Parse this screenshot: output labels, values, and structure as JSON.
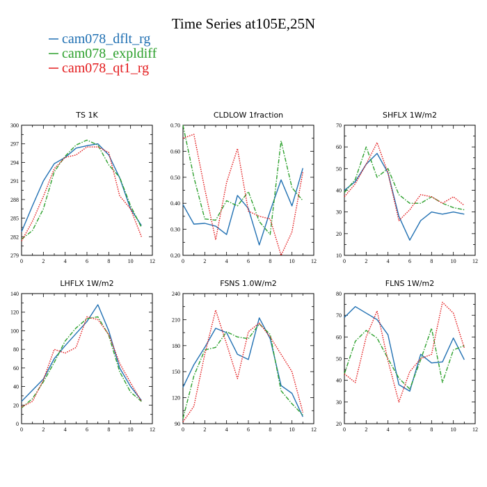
{
  "figure": {
    "title": "Time Series at105E,25N"
  },
  "legend": [
    {
      "label": "cam078_dflt_rg",
      "color": "#1f6fb2",
      "dash": "solid"
    },
    {
      "label": "cam078_expldiff",
      "color": "#2ca02c",
      "dash": "dashdot"
    },
    {
      "label": "cam078_qt1_rg",
      "color": "#e31a1c",
      "dash": "dot"
    }
  ],
  "chart_data": [
    {
      "type": "line",
      "title": "TS   1K",
      "x": [
        0,
        1,
        2,
        3,
        4,
        5,
        6,
        7,
        8,
        9,
        10,
        11
      ],
      "xlim": [
        0,
        12
      ],
      "xticks": [
        0,
        2,
        4,
        6,
        8,
        10,
        12
      ],
      "ylim": [
        279,
        300
      ],
      "yticks": [
        279,
        282,
        285,
        288,
        291,
        294,
        297,
        300
      ],
      "ytick_labels": [
        "279",
        "282",
        "285",
        "288",
        "291",
        "294",
        "297",
        "300"
      ],
      "series": [
        {
          "name": "cam078_dflt_rg",
          "values": [
            282.8,
            287.0,
            291.0,
            293.8,
            294.8,
            296.3,
            296.7,
            297.0,
            295.2,
            291.5,
            286.5,
            283.8
          ]
        },
        {
          "name": "cam078_expldiff",
          "values": [
            281.6,
            283.0,
            286.5,
            292.5,
            295.0,
            296.8,
            297.6,
            296.8,
            293.6,
            291.6,
            287.0,
            283.5
          ]
        },
        {
          "name": "cam078_qt1_rg",
          "values": [
            281.3,
            284.5,
            288.5,
            293.0,
            294.8,
            295.2,
            296.5,
            296.5,
            295.6,
            288.6,
            286.5,
            282.0
          ]
        }
      ]
    },
    {
      "type": "line",
      "title": "CLDLOW   1fraction",
      "x": [
        0,
        1,
        2,
        3,
        4,
        5,
        6,
        7,
        8,
        9,
        10,
        11
      ],
      "xlim": [
        0,
        12
      ],
      "xticks": [
        0,
        2,
        4,
        6,
        8,
        10,
        12
      ],
      "ylim": [
        0.2,
        0.7
      ],
      "yticks": [
        0.2,
        0.3,
        0.4,
        0.5,
        0.6,
        0.7
      ],
      "ytick_labels": [
        "0.20",
        "0.30",
        "0.40",
        "0.50",
        "0.60",
        "0.70"
      ],
      "series": [
        {
          "name": "cam078_dflt_rg",
          "values": [
            0.395,
            0.32,
            0.323,
            0.312,
            0.28,
            0.43,
            0.38,
            0.24,
            0.37,
            0.49,
            0.39,
            0.535
          ]
        },
        {
          "name": "cam078_expldiff",
          "values": [
            0.7,
            0.5,
            0.34,
            0.335,
            0.41,
            0.39,
            0.445,
            0.33,
            0.28,
            0.64,
            0.46,
            0.41
          ]
        },
        {
          "name": "cam078_qt1_rg",
          "values": [
            0.65,
            0.665,
            0.455,
            0.26,
            0.48,
            0.61,
            0.37,
            0.35,
            0.34,
            0.2,
            0.29,
            0.52
          ]
        }
      ]
    },
    {
      "type": "line",
      "title": "SHFLX   1W/m2",
      "x": [
        0,
        1,
        2,
        3,
        4,
        5,
        6,
        7,
        8,
        9,
        10,
        11
      ],
      "xlim": [
        0,
        12
      ],
      "xticks": [
        0,
        2,
        4,
        6,
        8,
        10,
        12
      ],
      "ylim": [
        10,
        70
      ],
      "yticks": [
        10,
        20,
        30,
        40,
        50,
        60,
        70
      ],
      "ytick_labels": [
        "10",
        "20",
        "30",
        "40",
        "50",
        "60",
        "70"
      ],
      "series": [
        {
          "name": "cam078_dflt_rg",
          "values": [
            40,
            44,
            52,
            57,
            48,
            28,
            17,
            26,
            30,
            29,
            30,
            29
          ]
        },
        {
          "name": "cam078_expldiff",
          "values": [
            39,
            45,
            60,
            46,
            50,
            38,
            34,
            34,
            37,
            34,
            32,
            31
          ]
        },
        {
          "name": "cam078_qt1_rg",
          "values": [
            37,
            43,
            52,
            62,
            48,
            26,
            31,
            38,
            37,
            34,
            37,
            33
          ]
        }
      ]
    },
    {
      "type": "line",
      "title": "LHFLX   1W/m2",
      "x": [
        0,
        1,
        2,
        3,
        4,
        5,
        6,
        7,
        8,
        9,
        10,
        11
      ],
      "xlim": [
        0,
        12
      ],
      "xticks": [
        0,
        2,
        4,
        6,
        8,
        10,
        12
      ],
      "ylim": [
        0,
        140
      ],
      "yticks": [
        0,
        20,
        40,
        60,
        80,
        100,
        120,
        140
      ],
      "ytick_labels": [
        "0",
        "20",
        "40",
        "60",
        "80",
        "100",
        "120",
        "140"
      ],
      "series": [
        {
          "name": "cam078_dflt_rg",
          "values": [
            24,
            36,
            48,
            70,
            84,
            97,
            110,
            128,
            100,
            60,
            40,
            25
          ]
        },
        {
          "name": "cam078_expldiff",
          "values": [
            17,
            27,
            45,
            66,
            89,
            103,
            113,
            115,
            95,
            56,
            34,
            24
          ]
        },
        {
          "name": "cam078_qt1_rg",
          "values": [
            18,
            24,
            47,
            80,
            76,
            82,
            115,
            112,
            96,
            65,
            44,
            24
          ]
        }
      ]
    },
    {
      "type": "line",
      "title": "FSNS   1.0W/m2",
      "x": [
        0,
        1,
        2,
        3,
        4,
        5,
        6,
        7,
        8,
        9,
        10,
        11
      ],
      "xlim": [
        0,
        12
      ],
      "xticks": [
        0,
        2,
        4,
        6,
        8,
        10,
        12
      ],
      "ylim": [
        90,
        240
      ],
      "yticks": [
        90,
        120,
        150,
        180,
        210,
        240
      ],
      "ytick_labels": [
        "90",
        "120",
        "150",
        "180",
        "210",
        "240"
      ],
      "series": [
        {
          "name": "cam078_dflt_rg",
          "values": [
            132,
            158,
            178,
            200,
            195,
            170,
            164,
            212,
            188,
            134,
            125,
            98
          ]
        },
        {
          "name": "cam078_expldiff",
          "values": [
            96,
            145,
            175,
            178,
            196,
            190,
            188,
            205,
            193,
            128,
            113,
            100
          ]
        },
        {
          "name": "cam078_qt1_rg",
          "values": [
            92,
            110,
            170,
            221,
            182,
            142,
            196,
            206,
            190,
            170,
            150,
            103
          ]
        }
      ]
    },
    {
      "type": "line",
      "title": "FLNS   1W/m2",
      "x": [
        0,
        1,
        2,
        3,
        4,
        5,
        6,
        7,
        8,
        9,
        10,
        11
      ],
      "xlim": [
        0,
        12
      ],
      "xticks": [
        0,
        2,
        4,
        6,
        8,
        10,
        12
      ],
      "ylim": [
        20,
        80
      ],
      "yticks": [
        20,
        30,
        40,
        50,
        60,
        70,
        80
      ],
      "ytick_labels": [
        "20",
        "30",
        "40",
        "50",
        "60",
        "70",
        "80"
      ],
      "series": [
        {
          "name": "cam078_dflt_rg",
          "values": [
            69,
            74,
            71,
            68,
            61,
            38,
            35,
            52,
            48,
            48.5,
            59.5,
            49.5
          ]
        },
        {
          "name": "cam078_expldiff",
          "values": [
            43,
            58,
            63,
            59.5,
            50,
            41,
            36,
            49.5,
            64,
            39,
            54,
            56
          ]
        },
        {
          "name": "cam078_qt1_rg",
          "values": [
            43,
            39,
            60,
            72,
            49,
            30,
            44,
            50,
            52,
            76,
            71,
            55
          ]
        }
      ]
    }
  ]
}
